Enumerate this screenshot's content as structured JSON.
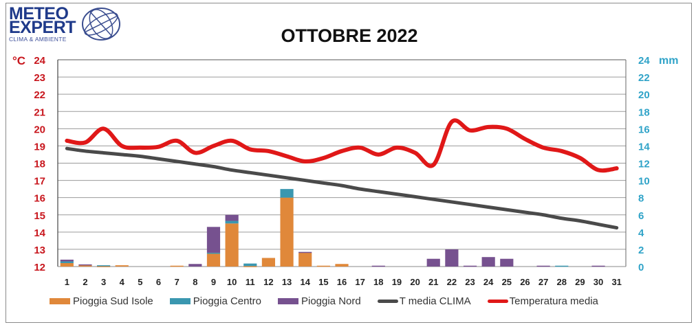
{
  "logo": {
    "line1": "METEO",
    "line2": "EXPERT",
    "tagline": "CLIMA & AMBIENTE"
  },
  "title": "OTTOBRE 2022",
  "axes": {
    "left_unit": "°C",
    "right_unit": "mm",
    "left_ticks": [
      "24",
      "23",
      "22",
      "21",
      "20",
      "19",
      "18",
      "17",
      "16",
      "15",
      "14",
      "13",
      "12"
    ],
    "right_ticks": [
      "24",
      "22",
      "20",
      "18",
      "16",
      "14",
      "12",
      "10",
      "8",
      "6",
      "4",
      "2",
      "0"
    ]
  },
  "colors": {
    "sud": "#e0883a",
    "centro": "#3a97b0",
    "nord": "#76518f",
    "clima": "#4a4a4a",
    "temp": "#e01818",
    "left_axis": "#c8161d",
    "right_axis": "#2fa3c8"
  },
  "legend": [
    {
      "label": "Pioggia Sud Isole",
      "kind": "box",
      "color": "#e0883a"
    },
    {
      "label": "Pioggia Centro",
      "kind": "box",
      "color": "#3a97b0"
    },
    {
      "label": "Pioggia Nord",
      "kind": "box",
      "color": "#76518f"
    },
    {
      "label": "T media CLIMA",
      "kind": "line",
      "color": "#4a4a4a"
    },
    {
      "label": "Temperatura media",
      "kind": "line",
      "color": "#e01818"
    }
  ],
  "chart_data": {
    "type": "bar+line",
    "title": "OTTOBRE 2022",
    "xlabel": "",
    "ylabel_left": "°C",
    "ylabel_right": "mm",
    "ylim_left": [
      12,
      24
    ],
    "ylim_right": [
      0,
      24
    ],
    "grid": true,
    "legend_position": "bottom",
    "categories": [
      "1",
      "2",
      "3",
      "4",
      "5",
      "6",
      "7",
      "8",
      "9",
      "10",
      "11",
      "12",
      "13",
      "14",
      "15",
      "16",
      "17",
      "18",
      "19",
      "20",
      "21",
      "22",
      "23",
      "24",
      "25",
      "26",
      "27",
      "28",
      "29",
      "30",
      "31"
    ],
    "series": [
      {
        "name": "Pioggia Sud Isole",
        "type": "bar",
        "axis": "right",
        "stack": "rain",
        "values": [
          0.4,
          0.2,
          0.05,
          0.15,
          0,
          0,
          0.1,
          0,
          1.5,
          5.0,
          0.05,
          1.0,
          8.0,
          1.6,
          0.1,
          0.3,
          0,
          0,
          0,
          0,
          0,
          0,
          0,
          0,
          0,
          0,
          0,
          0,
          0,
          0,
          0
        ]
      },
      {
        "name": "Pioggia Centro",
        "type": "bar",
        "axis": "right",
        "stack": "rain",
        "values": [
          0.2,
          0,
          0.1,
          0,
          0,
          0,
          0,
          0,
          0.1,
          0.3,
          0.3,
          0,
          1.0,
          0,
          0,
          0,
          0,
          0,
          0,
          0,
          0,
          0,
          0,
          0,
          0,
          0,
          0,
          0.1,
          0,
          0,
          0
        ]
      },
      {
        "name": "Pioggia Nord",
        "type": "bar",
        "axis": "right",
        "stack": "rain",
        "values": [
          0.2,
          0.05,
          0,
          0,
          0,
          0,
          0,
          0.3,
          3.0,
          0.7,
          0,
          0,
          0,
          0.1,
          0,
          0,
          0,
          0.1,
          0,
          0,
          0.9,
          2.0,
          0.1,
          1.1,
          0.9,
          0,
          0.1,
          0,
          0,
          0.1,
          0
        ]
      },
      {
        "name": "T media CLIMA",
        "type": "line",
        "axis": "left",
        "values": [
          18.85,
          18.7,
          18.6,
          18.5,
          18.4,
          18.25,
          18.1,
          17.95,
          17.8,
          17.6,
          17.45,
          17.3,
          17.15,
          17.0,
          16.85,
          16.7,
          16.5,
          16.35,
          16.2,
          16.05,
          15.9,
          15.75,
          15.6,
          15.45,
          15.3,
          15.15,
          15.0,
          14.8,
          14.65,
          14.45,
          14.25
        ]
      },
      {
        "name": "Temperatura media",
        "type": "line",
        "axis": "left",
        "values": [
          19.3,
          19.2,
          20.0,
          19.0,
          18.9,
          18.95,
          19.3,
          18.6,
          19.0,
          19.3,
          18.8,
          18.7,
          18.4,
          18.1,
          18.3,
          18.7,
          18.9,
          18.5,
          18.9,
          18.6,
          17.9,
          20.4,
          19.9,
          20.1,
          20.0,
          19.4,
          18.9,
          18.7,
          18.3,
          17.6,
          17.7
        ]
      }
    ]
  }
}
